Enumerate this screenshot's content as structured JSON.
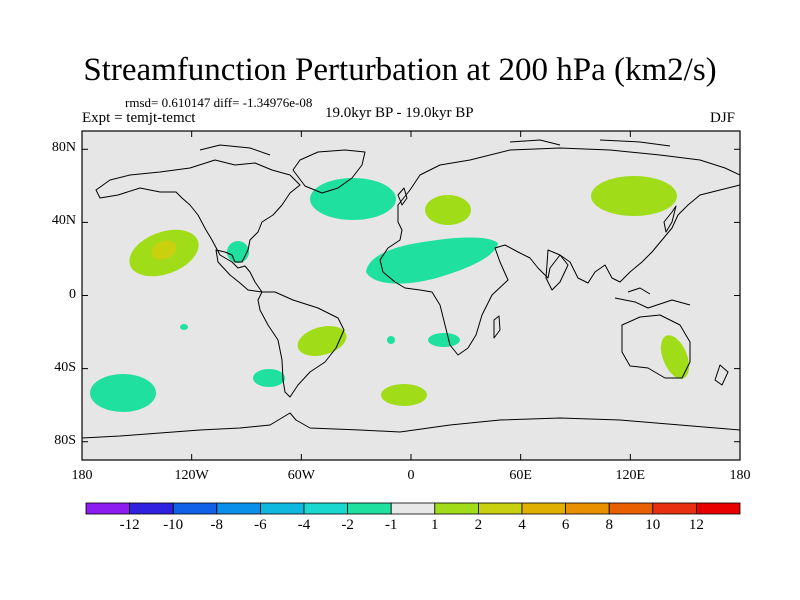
{
  "header": {
    "title": "Streamfunction Perturbation at 200 hPa (km2/s)",
    "stats": "rmsd= 0.610147 diff= -1.34976e-08",
    "experiment": "Expt = temjt-temct",
    "period": "19.0kyr BP - 19.0kyr BP",
    "season": "DJF"
  },
  "axes": {
    "lat_labels": [
      "80N",
      "40N",
      "0",
      "40S",
      "80S"
    ],
    "lat_values": [
      80,
      40,
      0,
      -40,
      -80
    ],
    "lon_labels": [
      "180",
      "120W",
      "60W",
      "0",
      "60E",
      "120E",
      "180"
    ],
    "lon_values": [
      -180,
      -120,
      -60,
      0,
      60,
      120,
      180
    ]
  },
  "colorbar": {
    "colors": [
      "#8c1cf0",
      "#3020e0",
      "#1060e8",
      "#0a90e8",
      "#10b8e0",
      "#18d8d0",
      "#20e0a0",
      "#e8e8e8",
      "#a0dc18",
      "#c8d010",
      "#e0b000",
      "#e89000",
      "#e86000",
      "#e83010",
      "#e80000"
    ],
    "labels": [
      "-12",
      "-10",
      "-8",
      "-6",
      "-4",
      "-2",
      "-1",
      "1",
      "2",
      "4",
      "6",
      "8",
      "10",
      "12"
    ]
  },
  "map": {
    "background_color": "#e6e6e6",
    "lon_range": [
      -180,
      180
    ],
    "lat_range": [
      -90,
      90
    ]
  },
  "anomalies": [
    {
      "id": "north-atlantic",
      "level": "-1",
      "color": "#20e0a0"
    },
    {
      "id": "north-africa-arabia",
      "level": "-1",
      "color": "#20e0a0"
    },
    {
      "id": "gulf-of-mexico",
      "level": "-1",
      "color": "#20e0a0"
    },
    {
      "id": "south-pacific-west",
      "level": "-1",
      "color": "#20e0a0"
    },
    {
      "id": "south-atlantic-patagonia",
      "level": "-1",
      "color": "#20e0a0"
    },
    {
      "id": "south-africa",
      "level": "-1",
      "color": "#20e0a0"
    },
    {
      "id": "tropical-east-pacific",
      "level": "-1",
      "color": "#20e0a0"
    },
    {
      "id": "tropical-atlantic-islet",
      "level": "-1",
      "color": "#20e0a0"
    },
    {
      "id": "north-pacific",
      "level": "2",
      "color": "#a0dc18"
    },
    {
      "id": "north-pacific-core",
      "level": "4",
      "color": "#c8d010"
    },
    {
      "id": "europe",
      "level": "2",
      "color": "#a0dc18"
    },
    {
      "id": "east-asia",
      "level": "2",
      "color": "#a0dc18"
    },
    {
      "id": "south-america-brazil",
      "level": "2",
      "color": "#a0dc18"
    },
    {
      "id": "south-atlantic-east",
      "level": "2",
      "color": "#a0dc18"
    },
    {
      "id": "australia",
      "level": "2",
      "color": "#a0dc18"
    }
  ]
}
